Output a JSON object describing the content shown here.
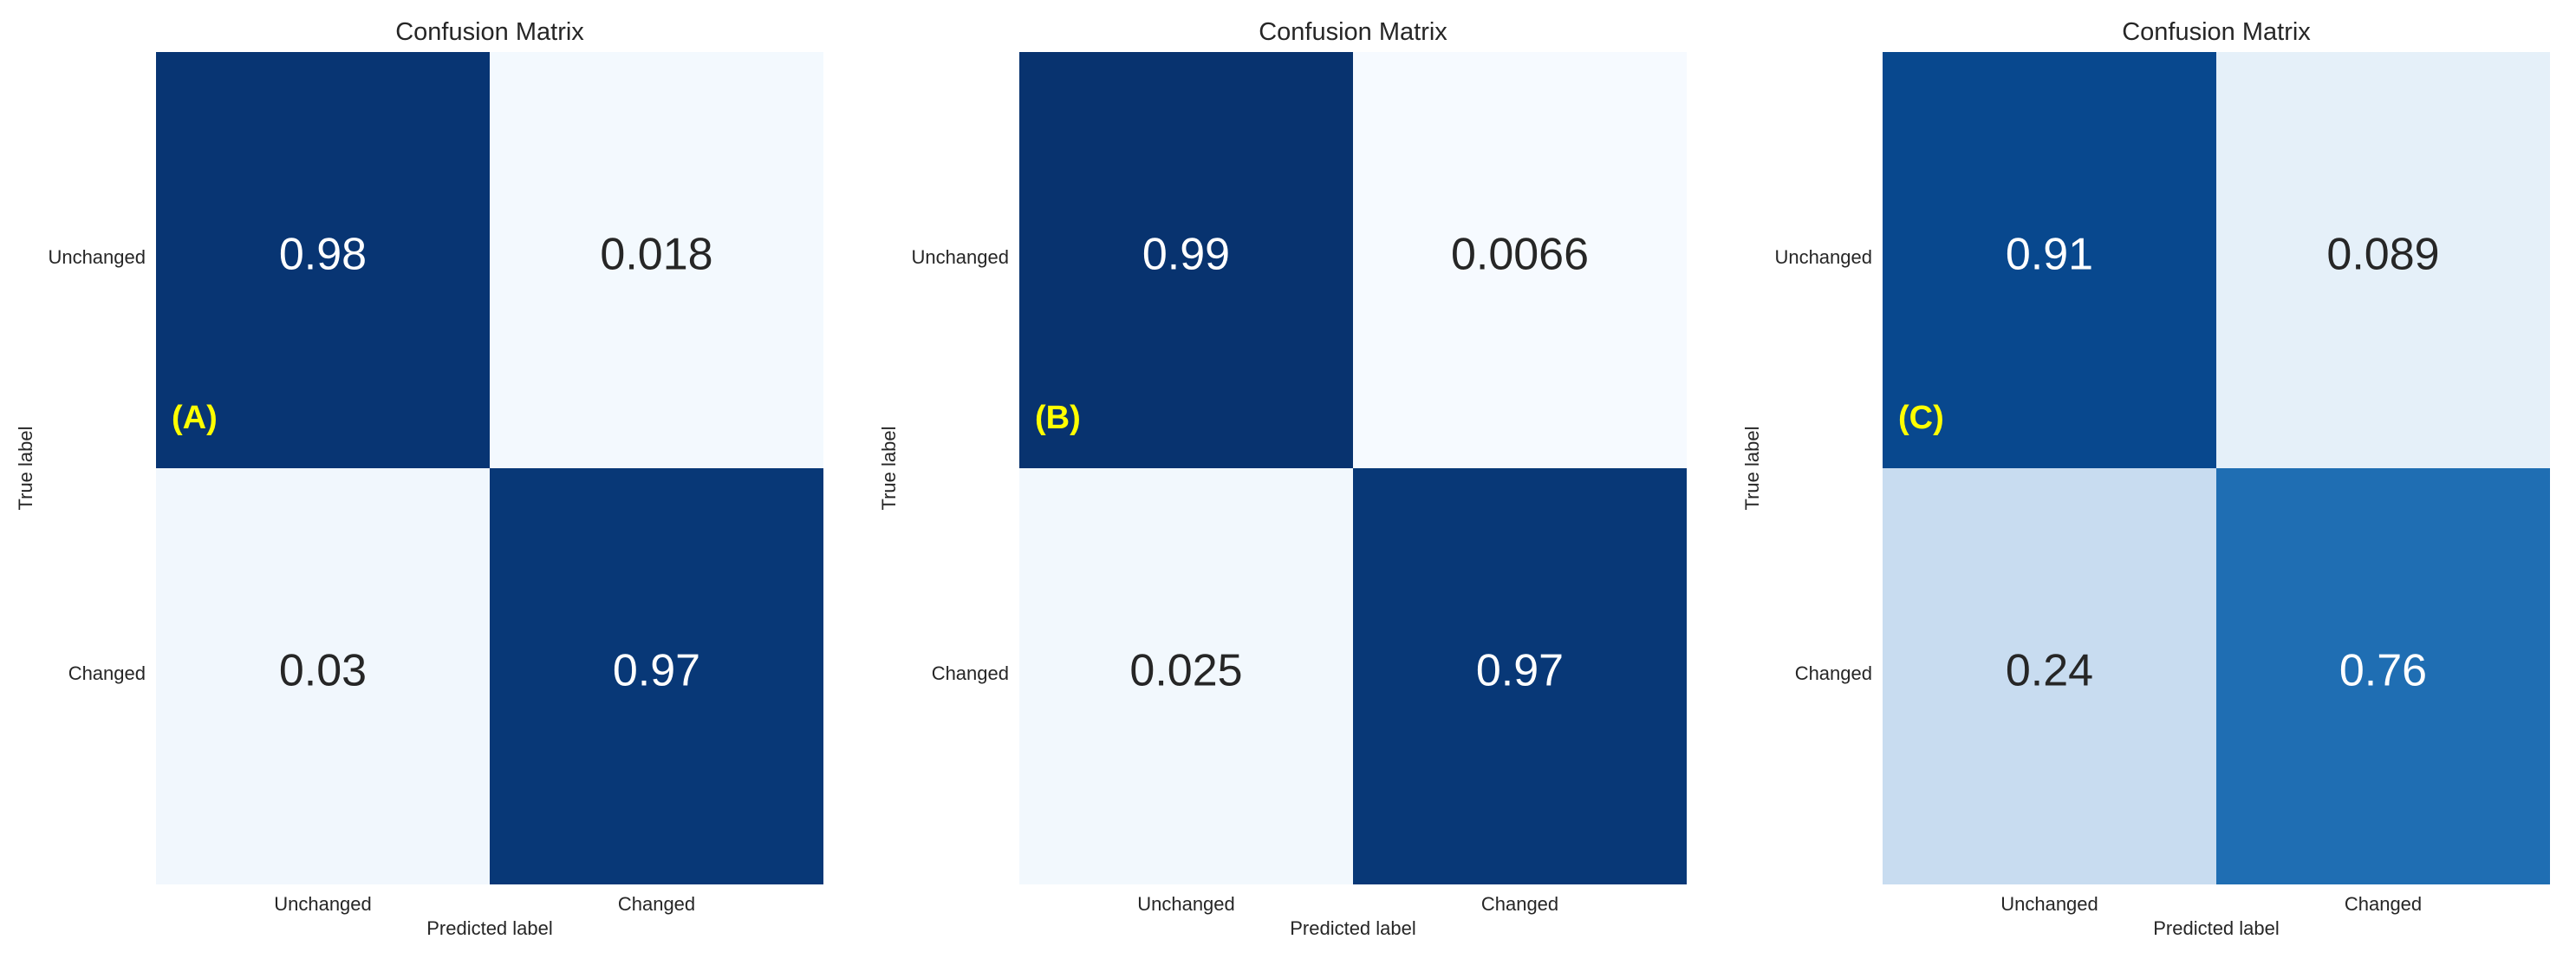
{
  "chart_data": [
    {
      "type": "heatmap",
      "title": "Confusion Matrix",
      "panel_label": "(A)",
      "xlabel": "Predicted label",
      "ylabel": "True label",
      "x_categories": [
        "Unchanged",
        "Changed"
      ],
      "y_categories": [
        "Unchanged",
        "Changed"
      ],
      "values": [
        [
          0.98,
          0.018
        ],
        [
          0.03,
          0.97
        ]
      ],
      "cell_labels": [
        [
          "0.98",
          "0.018"
        ],
        [
          "0.03",
          "0.97"
        ]
      ],
      "colormap": "Blues",
      "vrange": [
        0,
        1
      ]
    },
    {
      "type": "heatmap",
      "title": "Confusion Matrix",
      "panel_label": "(B)",
      "xlabel": "Predicted label",
      "ylabel": "True label",
      "x_categories": [
        "Unchanged",
        "Changed"
      ],
      "y_categories": [
        "Unchanged",
        "Changed"
      ],
      "values": [
        [
          0.99,
          0.0066
        ],
        [
          0.025,
          0.97
        ]
      ],
      "cell_labels": [
        [
          "0.99",
          "0.0066"
        ],
        [
          "0.025",
          "0.97"
        ]
      ],
      "colormap": "Blues",
      "vrange": [
        0,
        1
      ]
    },
    {
      "type": "heatmap",
      "title": "Confusion Matrix",
      "panel_label": "(C)",
      "xlabel": "Predicted label",
      "ylabel": "True label",
      "x_categories": [
        "Unchanged",
        "Changed"
      ],
      "y_categories": [
        "Unchanged",
        "Changed"
      ],
      "values": [
        [
          0.91,
          0.089
        ],
        [
          0.24,
          0.76
        ]
      ],
      "cell_labels": [
        [
          "0.91",
          "0.089"
        ],
        [
          "0.24",
          "0.76"
        ]
      ],
      "colormap": "Blues",
      "vrange": [
        0,
        1
      ]
    }
  ],
  "colors": {
    "low": "#f7fbff",
    "mid": "#c6dbef",
    "blue": "#2171b5",
    "high": "#08306b",
    "panel_label": "#ffff00"
  }
}
